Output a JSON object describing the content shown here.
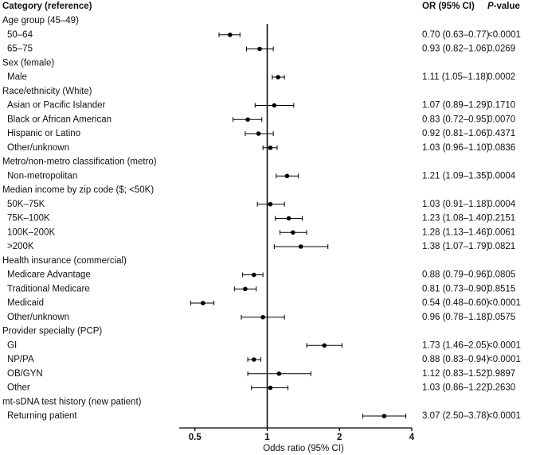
{
  "chart_data": {
    "type": "forest",
    "columns": [
      "Category (reference)",
      "OR (95% CI)",
      "P-value"
    ],
    "x_label": "Odds ratio (95% CI)",
    "log_x": true,
    "xlim": [
      0.43,
      4
    ],
    "xticks": [
      0.5,
      1,
      2,
      4
    ],
    "reference_line": 1,
    "color": "#000000",
    "groups": [
      {
        "label": "Age group (45–49)",
        "rows": [
          {
            "label": "50–64",
            "value": 0.7,
            "lower": 0.63,
            "upper": 0.77,
            "value_label": "0.70 (0.63–0.77)",
            "p": "<0.0001"
          },
          {
            "label": "65–75",
            "value": 0.93,
            "lower": 0.82,
            "upper": 1.06,
            "value_label": "0.93 (0.82–1.06)",
            "p": "0.0269"
          }
        ]
      },
      {
        "label": "Sex (female)",
        "rows": [
          {
            "label": "Male",
            "value": 1.11,
            "lower": 1.05,
            "upper": 1.18,
            "value_label": "1.11 (1.05–1.18)",
            "p": "0.0002"
          }
        ]
      },
      {
        "label": "Race/ethnicity (White)",
        "rows": [
          {
            "label": "Asian or Pacific Islander",
            "value": 1.07,
            "lower": 0.89,
            "upper": 1.29,
            "value_label": "1.07 (0.89–1.29)",
            "p": "0.1710"
          },
          {
            "label": "Black or African American",
            "value": 0.83,
            "lower": 0.72,
            "upper": 0.95,
            "value_label": "0.83 (0.72–0.95)",
            "p": "0.0070"
          },
          {
            "label": "Hispanic or Latino",
            "value": 0.92,
            "lower": 0.81,
            "upper": 1.06,
            "value_label": "0.92 (0.81–1.06)",
            "p": "0.4371"
          },
          {
            "label": "Other/unknown",
            "value": 1.03,
            "lower": 0.96,
            "upper": 1.1,
            "value_label": "1.03 (0.96–1.10)",
            "p": "0.0836"
          }
        ]
      },
      {
        "label": "Metro/non-metro classification (metro)",
        "rows": [
          {
            "label": "Non-metropolitan",
            "value": 1.21,
            "lower": 1.09,
            "upper": 1.35,
            "value_label": "1.21 (1.09–1.35)",
            "p": "0.0004"
          }
        ]
      },
      {
        "label": "Median income by zip code ($; <50K)",
        "rows": [
          {
            "label": "50K–75K",
            "value": 1.03,
            "lower": 0.91,
            "upper": 1.18,
            "value_label": "1.03 (0.91–1.18)",
            "p": "0.0004"
          },
          {
            "label": "75K–100K",
            "value": 1.23,
            "lower": 1.08,
            "upper": 1.4,
            "value_label": "1.23 (1.08–1.40)",
            "p": "0.2151"
          },
          {
            "label": "100K–200K",
            "value": 1.28,
            "lower": 1.13,
            "upper": 1.46,
            "value_label": "1.28 (1.13–1.46)",
            "p": "0.0061"
          },
          {
            "label": ">200K",
            "value": 1.38,
            "lower": 1.07,
            "upper": 1.79,
            "value_label": "1.38 (1.07–1.79)",
            "p": "0.0821"
          }
        ]
      },
      {
        "label": "Health insurance (commercial)",
        "rows": [
          {
            "label": "Medicare Advantage",
            "value": 0.88,
            "lower": 0.79,
            "upper": 0.96,
            "value_label": "0.88 (0.79–0.96)",
            "p": "0.0805"
          },
          {
            "label": "Traditional Medicare",
            "value": 0.81,
            "lower": 0.73,
            "upper": 0.9,
            "value_label": "0.81 (0.73–0.90)",
            "p": "0.8515"
          },
          {
            "label": "Medicaid",
            "value": 0.54,
            "lower": 0.48,
            "upper": 0.6,
            "value_label": "0.54 (0.48–0.60)",
            "p": "<0.0001"
          },
          {
            "label": "Other/unknown",
            "value": 0.96,
            "lower": 0.78,
            "upper": 1.18,
            "value_label": "0.96 (0.78–1.18)",
            "p": "0.0575"
          }
        ]
      },
      {
        "label": "Provider specialty (PCP)",
        "rows": [
          {
            "label": "GI",
            "value": 1.73,
            "lower": 1.46,
            "upper": 2.05,
            "value_label": "1.73 (1.46–2.05)",
            "p": "<0.0001"
          },
          {
            "label": "NP/PA",
            "value": 0.88,
            "lower": 0.83,
            "upper": 0.94,
            "value_label": "0.88 (0.83–0.94)",
            "p": "<0.0001"
          },
          {
            "label": "OB/GYN",
            "value": 1.12,
            "lower": 0.83,
            "upper": 1.52,
            "value_label": "1.12 (0.83–1.52)",
            "p": "0.9897"
          },
          {
            "label": "Other",
            "value": 1.03,
            "lower": 0.86,
            "upper": 1.22,
            "value_label": "1.03 (0.86–1.22)",
            "p": "0.2630"
          }
        ]
      },
      {
        "label": "mt-sDNA test history (new patient)",
        "rows": [
          {
            "label": "Returning patient",
            "value": 3.07,
            "lower": 2.5,
            "upper": 3.78,
            "value_label": "3.07 (2.50–3.78)",
            "p": "<0.0001"
          }
        ]
      }
    ]
  }
}
